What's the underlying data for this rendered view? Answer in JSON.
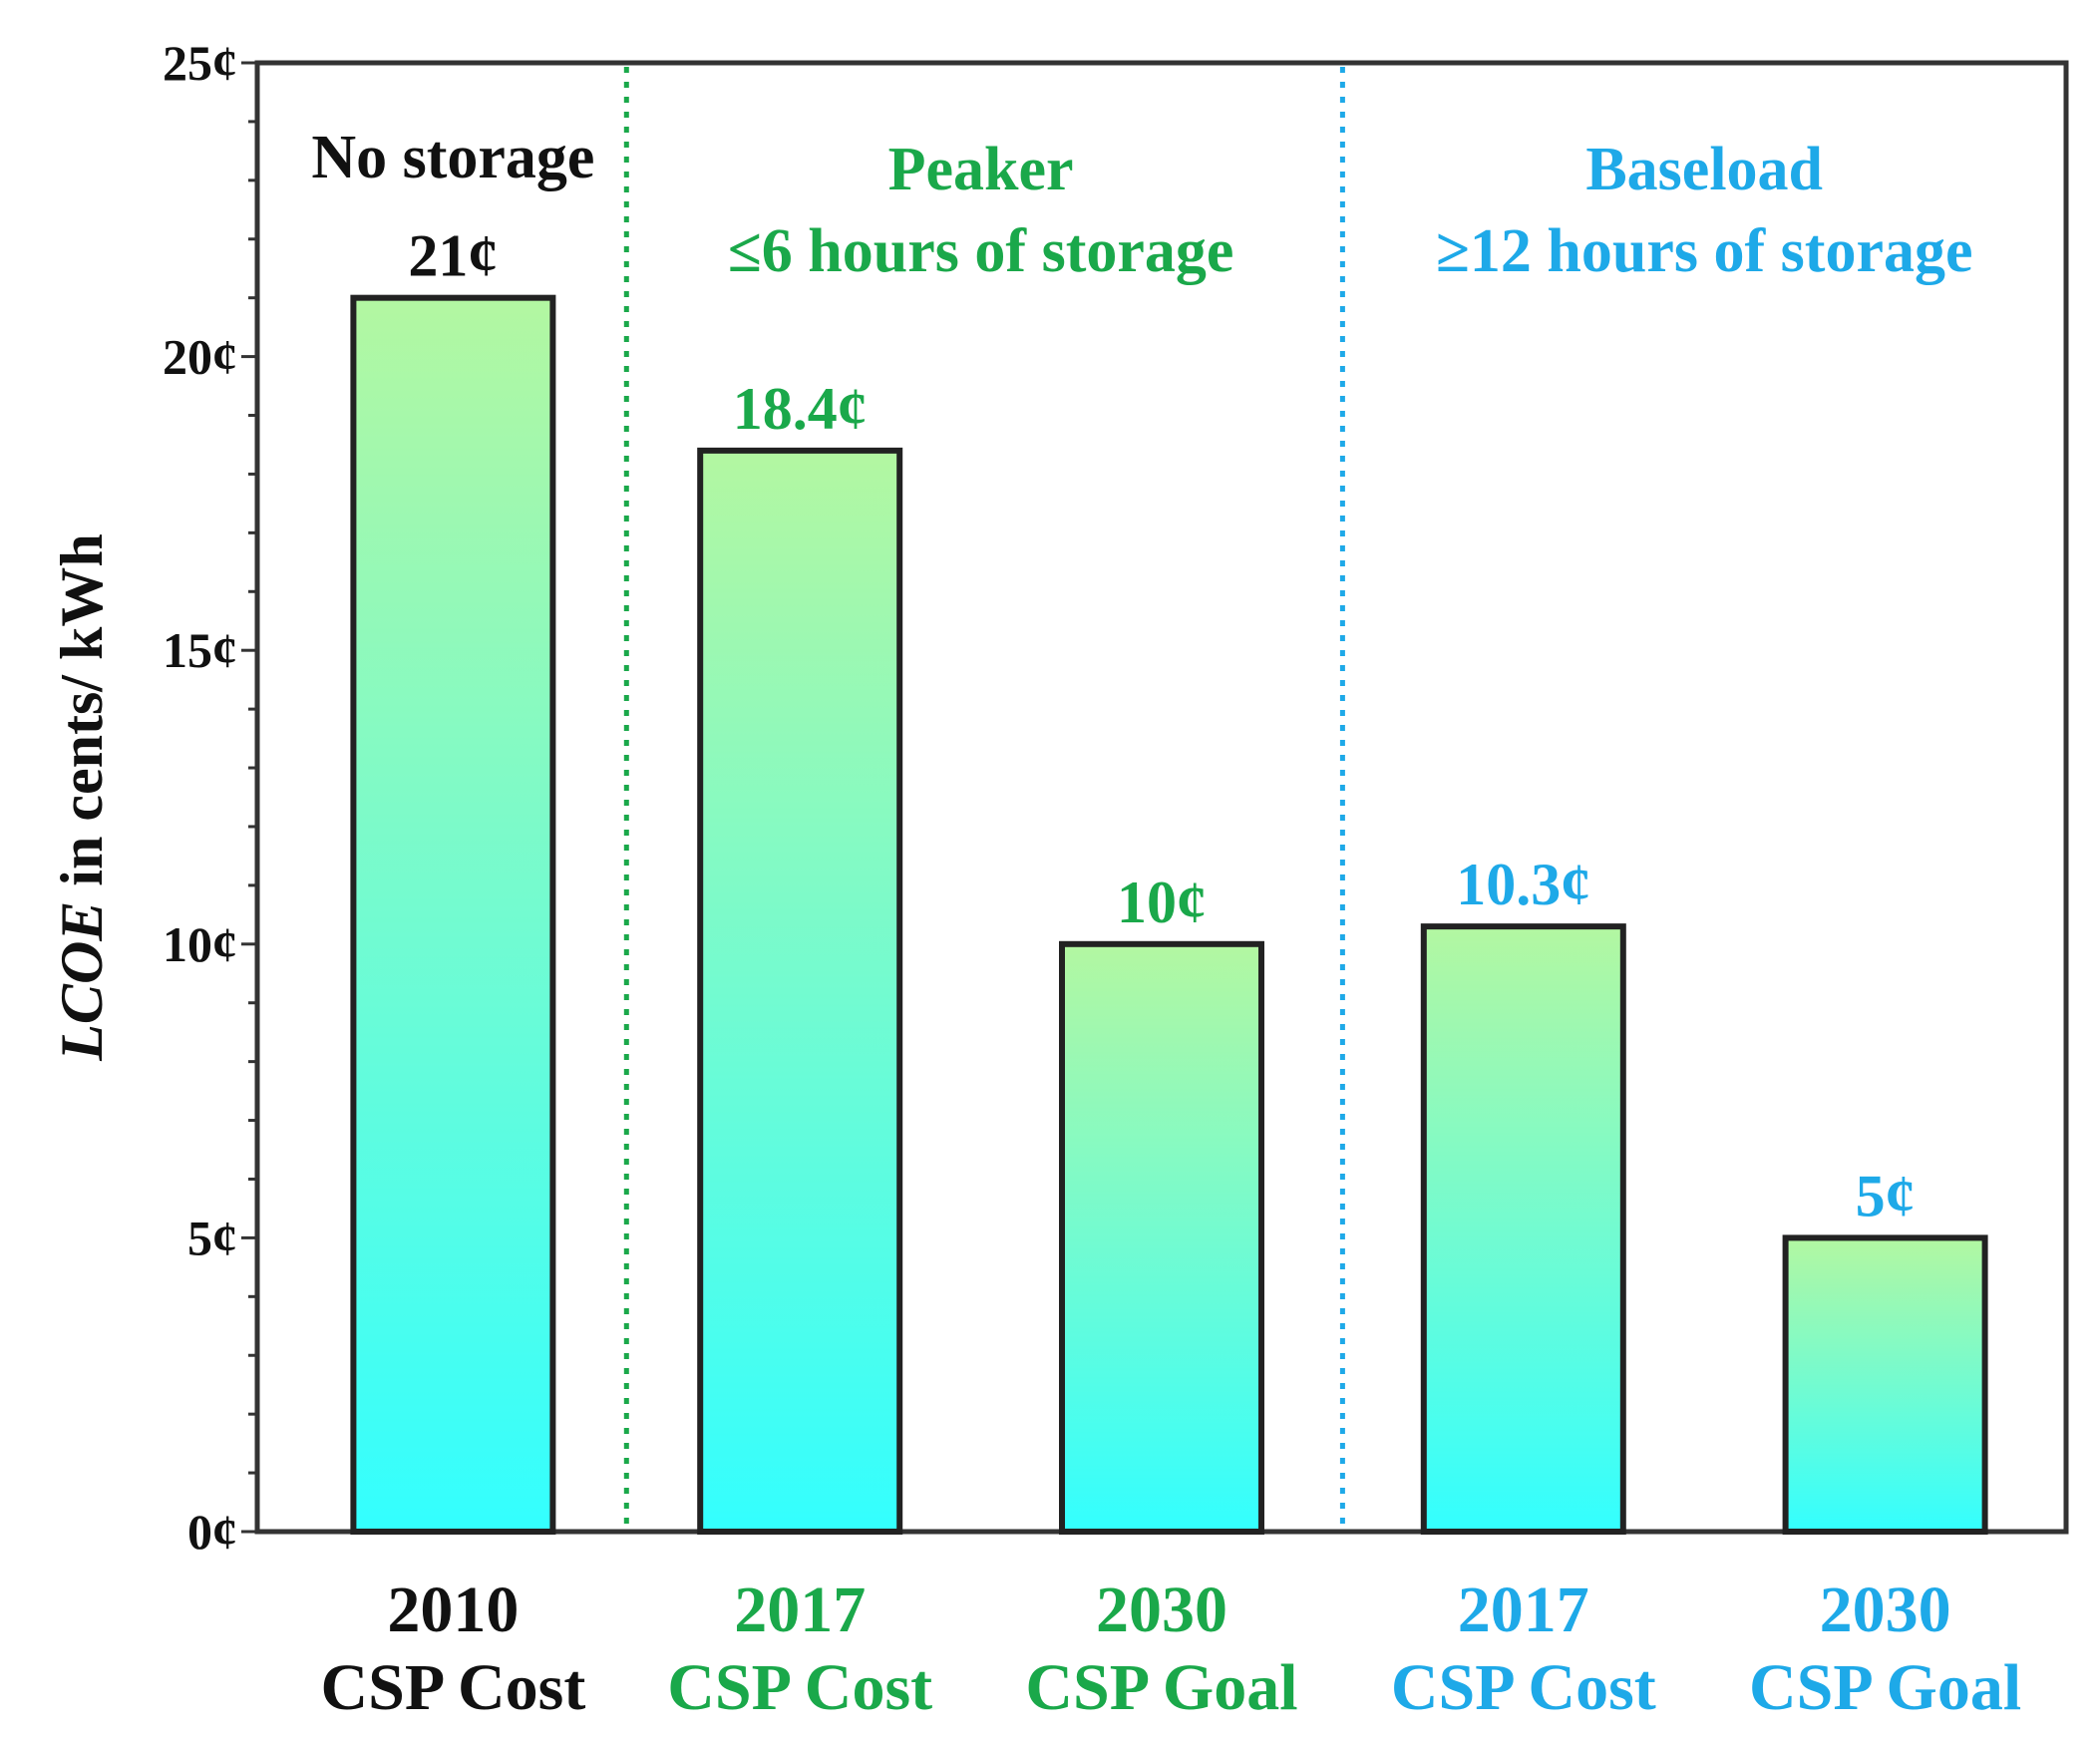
{
  "chart_data": {
    "type": "bar",
    "ylabel_italic": "LCOE",
    "ylabel_rest": " in cents/ kWh",
    "ylim": [
      0,
      25
    ],
    "yticks": [
      0,
      5,
      10,
      15,
      20,
      25
    ],
    "ytick_labels": [
      "0¢",
      "5¢",
      "10¢",
      "15¢",
      "20¢",
      "25¢"
    ],
    "categories": [
      {
        "line1": "2010",
        "line2": "CSP Cost",
        "value": 21,
        "label": "21¢",
        "group": "none"
      },
      {
        "line1": "2017",
        "line2": "CSP Cost",
        "value": 18.4,
        "label": "18.4¢",
        "group": "peaker"
      },
      {
        "line1": "2030",
        "line2": "CSP Goal",
        "value": 10,
        "label": "10¢",
        "group": "peaker"
      },
      {
        "line1": "2017",
        "line2": "CSP Cost",
        "value": 10.3,
        "label": "10.3¢",
        "group": "baseload"
      },
      {
        "line1": "2030",
        "line2": "CSP Goal",
        "value": 5,
        "label": "5¢",
        "group": "baseload"
      }
    ],
    "sections": [
      {
        "id": "none",
        "title": "No storage",
        "subtitle": ""
      },
      {
        "id": "peaker",
        "title": "Peaker",
        "subtitle": "≤6 hours of storage"
      },
      {
        "id": "baseload",
        "title": "Baseload",
        "subtitle": "≥12 hours of storage"
      }
    ],
    "colors": {
      "none": "#111111",
      "peaker": "#1aa84a",
      "baseload": "#1ea9e8",
      "bar_top": "#b3f7a1",
      "bar_bottom": "#33ffff",
      "bar_edge": "#222222"
    }
  }
}
